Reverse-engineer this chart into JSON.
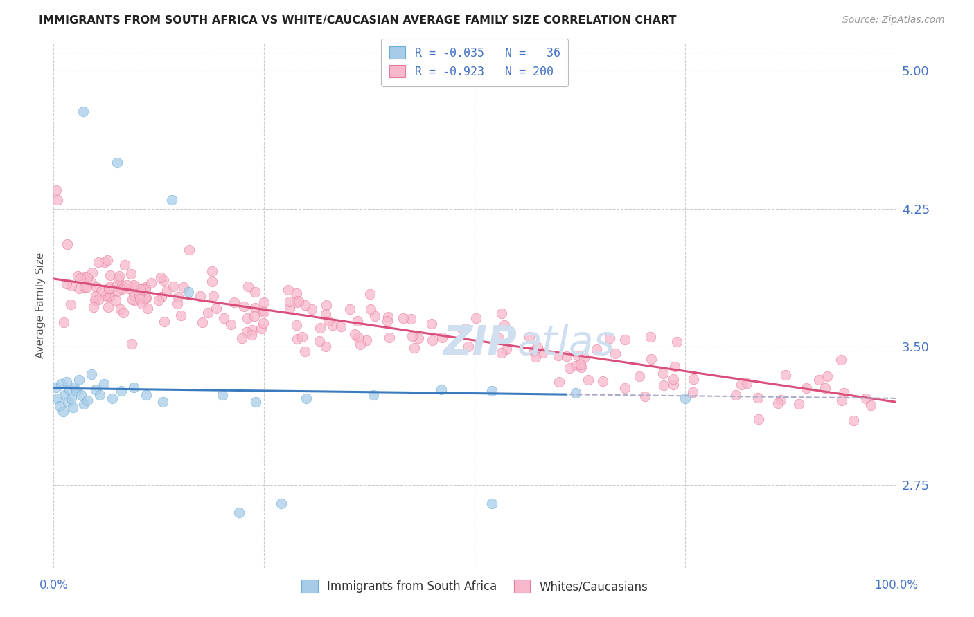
{
  "title": "IMMIGRANTS FROM SOUTH AFRICA VS WHITE/CAUCASIAN AVERAGE FAMILY SIZE CORRELATION CHART",
  "source": "Source: ZipAtlas.com",
  "ylabel": "Average Family Size",
  "yticks_right": [
    2.75,
    3.5,
    4.25,
    5.0
  ],
  "xmin": 0.0,
  "xmax": 100.0,
  "ymin": 2.3,
  "ymax": 5.15,
  "blue_R": -0.035,
  "blue_N": 36,
  "pink_R": -0.923,
  "pink_N": 200,
  "blue_color": "#a8cce8",
  "blue_edge_color": "#6aadd5",
  "pink_color": "#f7b8cb",
  "pink_edge_color": "#e8799a",
  "blue_line_color": "#3a7bbf",
  "pink_line_color": "#d94f7a",
  "dashed_line_color": "#aaaacc",
  "title_color": "#222222",
  "axis_color": "#4472c4",
  "grid_color": "#cccccc",
  "watermark_color": "#d0dff0",
  "bg_color": "#ffffff",
  "blue_scatter_x": [
    0.3,
    0.5,
    0.7,
    0.9,
    1.1,
    1.3,
    1.5,
    1.7,
    1.9,
    2.1,
    2.3,
    2.5,
    2.7,
    3.0,
    3.3,
    3.6,
    4.0,
    4.5,
    5.0,
    5.5,
    6.0,
    7.0,
    8.0,
    9.5,
    11.0,
    13.0,
    14.0,
    16.0,
    20.0,
    24.0,
    30.0,
    38.0,
    46.0,
    52.0,
    62.0,
    75.0
  ],
  "blue_scatter_y": [
    3.28,
    3.22,
    3.18,
    3.3,
    3.15,
    3.24,
    3.31,
    3.2,
    3.27,
    3.22,
    3.17,
    3.28,
    3.26,
    3.32,
    3.24,
    3.19,
    3.21,
    3.35,
    3.27,
    3.24,
    3.3,
    3.22,
    3.26,
    3.28,
    3.24,
    3.2,
    4.3,
    3.8,
    3.24,
    3.2,
    3.22,
    3.24,
    3.27,
    3.26,
    3.25,
    3.22
  ],
  "blue_outliers_x": [
    3.5,
    7.5,
    22.0,
    27.0,
    52.0
  ],
  "blue_outliers_y": [
    4.78,
    4.5,
    2.6,
    2.65,
    2.65
  ],
  "pink_seed": 123
}
